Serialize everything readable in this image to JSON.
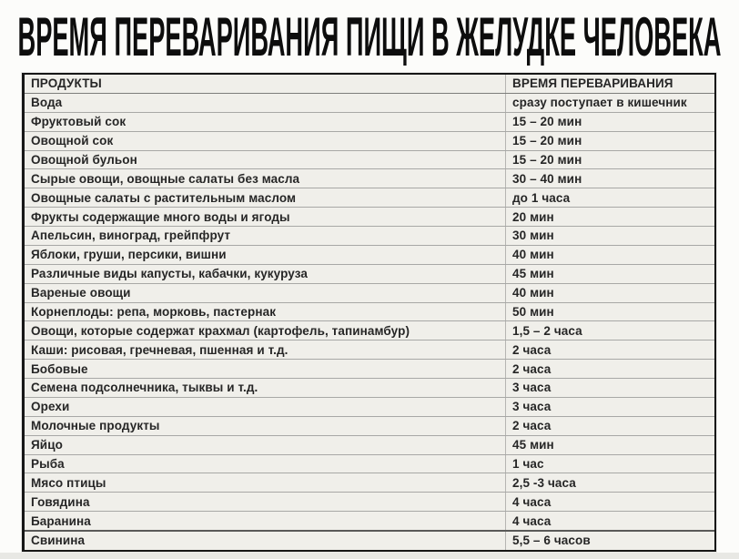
{
  "title": "ВРЕМЯ ПЕРЕВАРИВАНИЯ ПИЩИ В ЖЕЛУДКЕ ЧЕЛОВЕКА",
  "colors": {
    "page_background": "#fcfcfa",
    "table_background": "#f0efea",
    "table_border": "#161616",
    "row_line": "#a8a8a6",
    "text": "#262626",
    "title_text": "#0d0d0d",
    "bottom_strip": "#e8e8e4"
  },
  "chart_data": {
    "type": "table",
    "title": "ВРЕМЯ ПЕРЕВАРИВАНИЯ ПИЩИ В ЖЕЛУДКЕ ЧЕЛОВЕКА",
    "columns": [
      "ПРОДУКТЫ",
      "ВРЕМЯ ПЕРЕВАРИВАНИЯ"
    ],
    "rows": [
      [
        "Вода",
        "сразу поступает в кишечник"
      ],
      [
        "Фруктовый сок",
        "15 – 20 мин"
      ],
      [
        "Овощной сок",
        "15 – 20 мин"
      ],
      [
        "Овощной бульон",
        "15 – 20 мин"
      ],
      [
        "Сырые овощи, овощные салаты без масла",
        "30 – 40 мин"
      ],
      [
        "Овощные салаты с растительным маслом",
        "до 1 часа"
      ],
      [
        "Фрукты содержащие много воды и ягоды",
        "20 мин"
      ],
      [
        "Апельсин, виноград, грейпфрут",
        "30 мин"
      ],
      [
        "Яблоки, груши, персики, вишни",
        "40 мин"
      ],
      [
        "Различные виды капусты, кабачки, кукуруза",
        "45 мин"
      ],
      [
        "Вареные овощи",
        "40 мин"
      ],
      [
        "Корнеплоды: репа, морковь, пастернак",
        "50 мин"
      ],
      [
        "Овощи, которые содержат крахмал (картофель, тапинамбур)",
        "1,5 – 2 часа"
      ],
      [
        "Каши: рисовая, гречневая, пшенная и т.д.",
        "2 часа"
      ],
      [
        "Бобовые",
        "2 часа"
      ],
      [
        "Семена подсолнечника, тыквы и т.д.",
        "3 часа"
      ],
      [
        "Орехи",
        "3 часа"
      ],
      [
        "Молочные продукты",
        "2 часа"
      ],
      [
        "Яйцо",
        "45 мин"
      ],
      [
        "Рыба",
        "1 час"
      ],
      [
        "Мясо птицы",
        "2,5 -3 часа"
      ],
      [
        "Говядина",
        "4 часа"
      ],
      [
        "Баранина",
        "4 часа"
      ],
      [
        "Свинина",
        "5,5 – 6 часов"
      ]
    ]
  }
}
